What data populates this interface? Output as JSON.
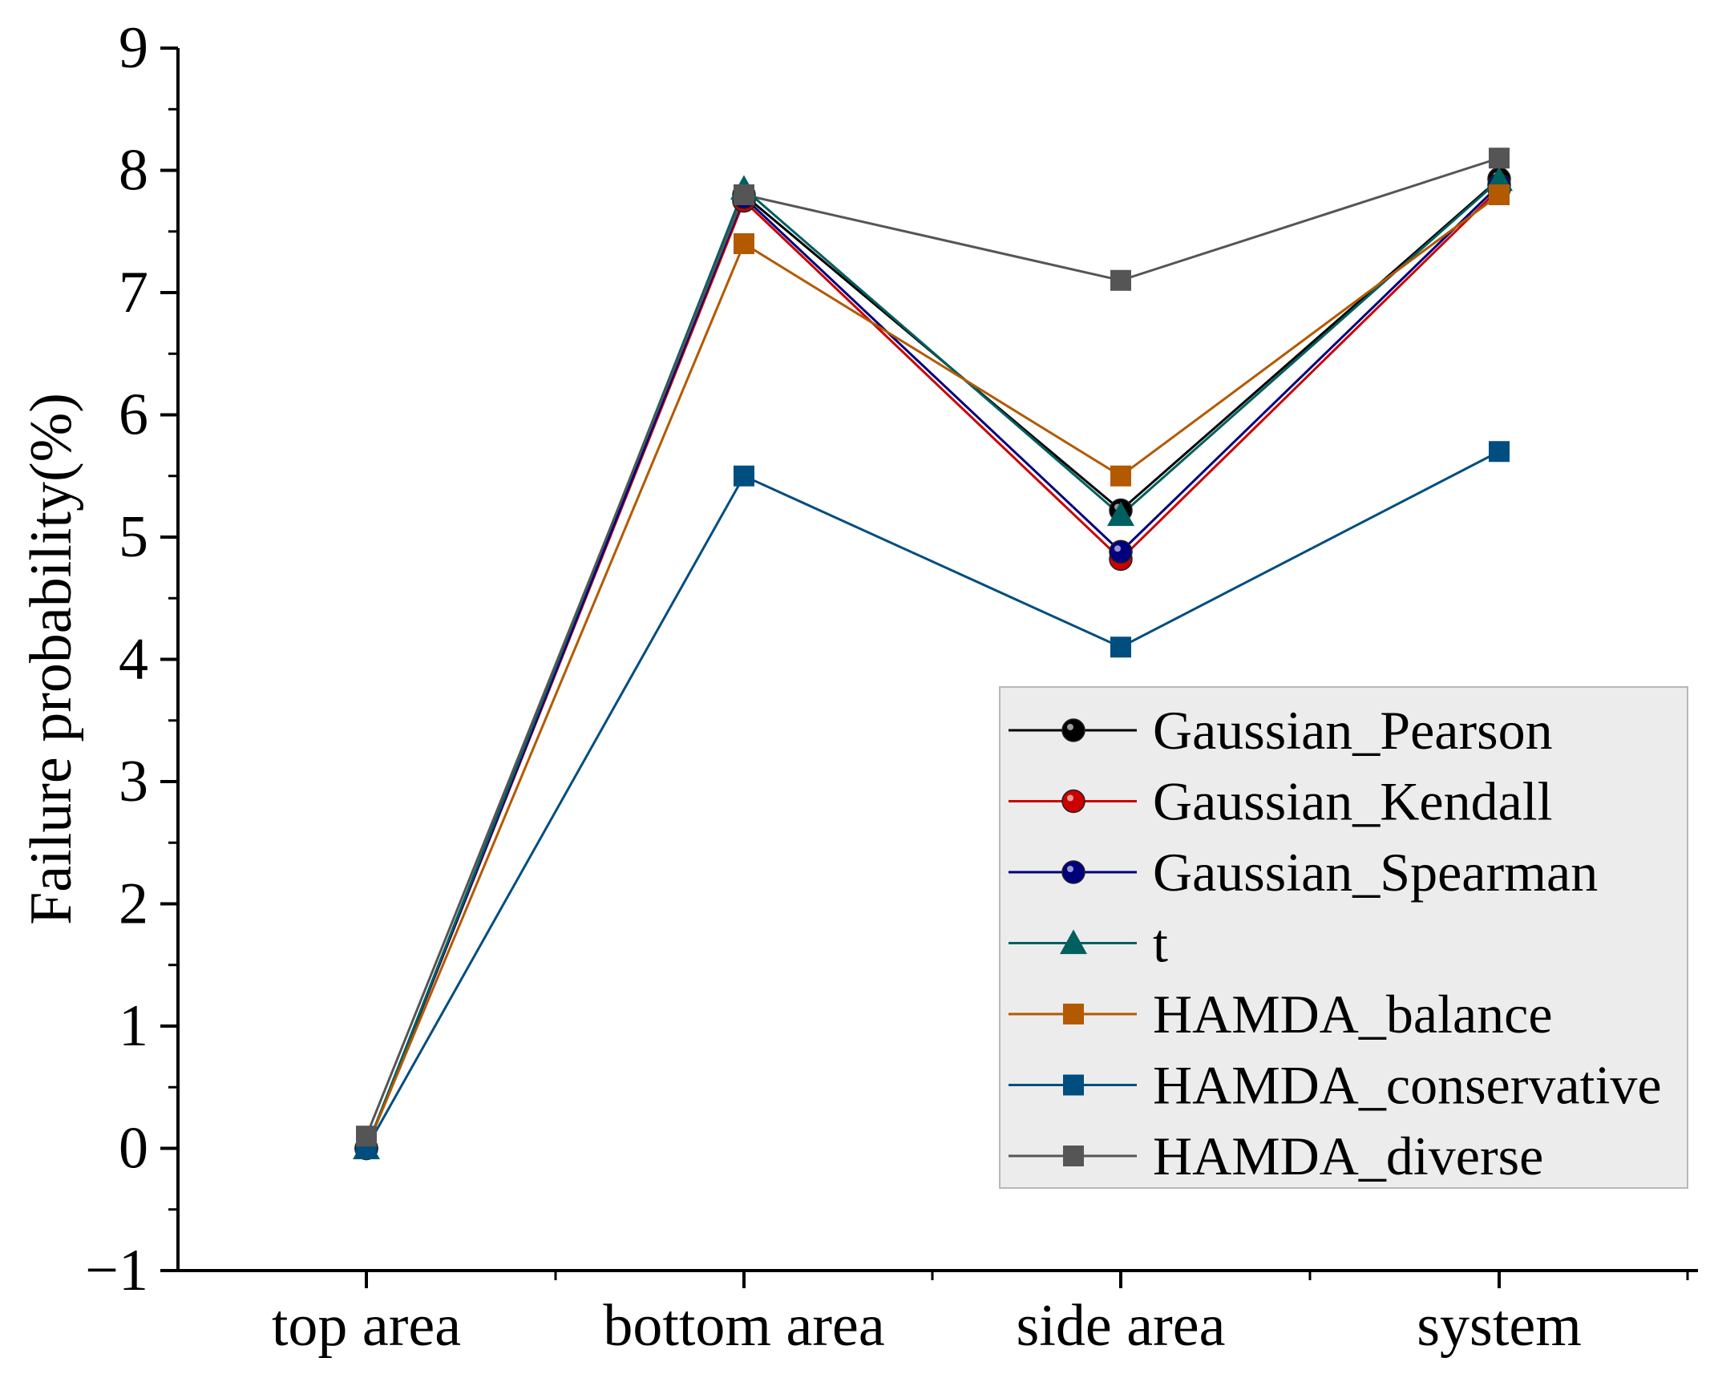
{
  "chart_data": {
    "type": "line",
    "title": "",
    "xlabel": "",
    "ylabel": "Failure probability(%)",
    "categories": [
      "top area",
      "bottom area",
      "side area",
      "system"
    ],
    "ylim": [
      -1,
      9
    ],
    "yticks": [
      -1,
      0,
      1,
      2,
      3,
      4,
      5,
      6,
      7,
      8,
      9
    ],
    "ytick_labels": [
      "−1",
      "0",
      "1",
      "2",
      "3",
      "4",
      "5",
      "6",
      "7",
      "8",
      "9"
    ],
    "grid": false,
    "legend_position": "bottom-right",
    "series": [
      {
        "name": "Gaussian_Pearson",
        "color": "#000000",
        "marker": "circle",
        "values": [
          0.0,
          7.8,
          5.22,
          7.93
        ]
      },
      {
        "name": "Gaussian_Kendall",
        "color": "#cc0000",
        "marker": "circle",
        "values": [
          0.0,
          7.75,
          4.82,
          7.85
        ]
      },
      {
        "name": "Gaussian_Spearman",
        "color": "#00007f",
        "marker": "circle",
        "values": [
          0.0,
          7.78,
          4.88,
          7.88
        ]
      },
      {
        "name": "t",
        "color": "#005f5f",
        "marker": "triangle",
        "values": [
          0.0,
          7.85,
          5.18,
          7.92
        ]
      },
      {
        "name": "HAMDA_balance",
        "color": "#b35900",
        "marker": "square",
        "values": [
          0.0,
          7.4,
          5.5,
          7.8
        ]
      },
      {
        "name": "HAMDA_conservative",
        "color": "#004d80",
        "marker": "square",
        "values": [
          0.0,
          5.5,
          4.1,
          5.7
        ]
      },
      {
        "name": "HAMDA_diverse",
        "color": "#555555",
        "marker": "square",
        "values": [
          0.1,
          7.8,
          7.1,
          8.1
        ]
      }
    ]
  }
}
